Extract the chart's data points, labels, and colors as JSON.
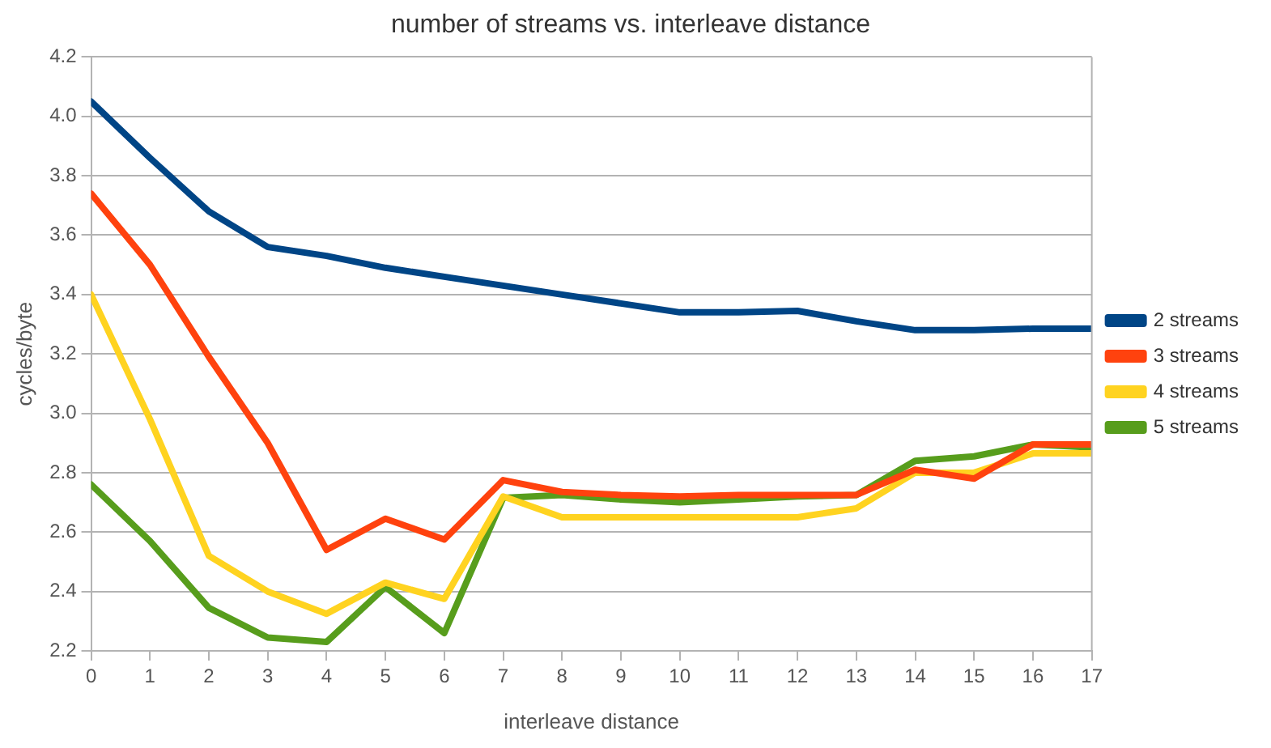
{
  "chart_data": {
    "type": "line",
    "title": "number of streams vs. interleave distance",
    "xlabel": "interleave distance",
    "ylabel": "cycles/byte",
    "x": [
      0,
      1,
      2,
      3,
      4,
      5,
      6,
      7,
      8,
      9,
      10,
      11,
      12,
      13,
      14,
      15,
      16,
      17
    ],
    "xlim": [
      0,
      17
    ],
    "xticks": [
      0,
      1,
      2,
      3,
      4,
      5,
      6,
      7,
      8,
      9,
      10,
      11,
      12,
      13,
      14,
      15,
      16,
      17
    ],
    "ylim": [
      2.2,
      4.2
    ],
    "yticks": [
      {
        "value": 2.2,
        "label": "2.2"
      },
      {
        "value": 2.4,
        "label": "2.4"
      },
      {
        "value": 2.6,
        "label": "2.6"
      },
      {
        "value": 2.8,
        "label": "2.8"
      },
      {
        "value": 3.0,
        "label": "3.0"
      },
      {
        "value": 3.2,
        "label": "3.2"
      },
      {
        "value": 3.4,
        "label": "3.4"
      },
      {
        "value": 3.6,
        "label": "3.6"
      },
      {
        "value": 3.8,
        "label": "3.8"
      },
      {
        "value": 4.0,
        "label": "4.0"
      },
      {
        "value": 4.2,
        "label": "4.2"
      }
    ],
    "grid": "y",
    "legend": "right",
    "marker": "none",
    "line_style": "solid",
    "series": [
      {
        "name": "2 streams",
        "color": "#004586",
        "values": [
          4.05,
          3.86,
          3.68,
          3.56,
          3.53,
          3.49,
          3.46,
          3.43,
          3.4,
          3.37,
          3.34,
          3.34,
          3.345,
          3.31,
          3.28,
          3.28,
          3.285,
          3.285
        ]
      },
      {
        "name": "3 streams",
        "color": "#ff420e",
        "values": [
          3.74,
          3.5,
          3.19,
          2.9,
          2.54,
          2.645,
          2.575,
          2.775,
          2.735,
          2.725,
          2.72,
          2.725,
          2.725,
          2.725,
          2.81,
          2.78,
          2.895,
          2.895
        ]
      },
      {
        "name": "4 streams",
        "color": "#ffd320",
        "values": [
          3.4,
          2.98,
          2.52,
          2.4,
          2.325,
          2.43,
          2.375,
          2.72,
          2.65,
          2.65,
          2.65,
          2.65,
          2.65,
          2.68,
          2.8,
          2.8,
          2.865,
          2.865
        ]
      },
      {
        "name": "5 streams",
        "color": "#579d1c",
        "values": [
          2.76,
          2.57,
          2.345,
          2.245,
          2.23,
          2.415,
          2.26,
          2.715,
          2.725,
          2.71,
          2.7,
          2.71,
          2.72,
          2.725,
          2.84,
          2.855,
          2.895,
          2.885
        ]
      }
    ]
  }
}
